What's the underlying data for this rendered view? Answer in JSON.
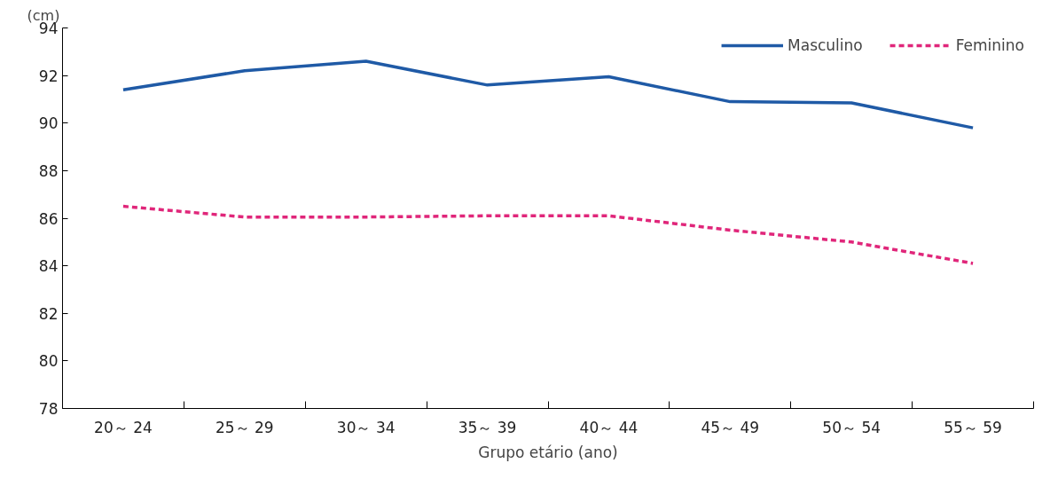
{
  "chart_data": {
    "type": "line",
    "ylabel": "(cm)",
    "xlabel": "Grupo etário (ano)",
    "categories": [
      "20～ 24",
      "25～ 29",
      "30～ 34",
      "35～ 39",
      "40～ 44",
      "45～ 49",
      "50～ 54",
      "55～ 59"
    ],
    "series": [
      {
        "name": "Masculino",
        "color": "#1f5aa6",
        "line_style": "solid",
        "values": [
          91.4,
          92.2,
          92.6,
          91.6,
          91.95,
          90.9,
          90.85,
          89.8
        ]
      },
      {
        "name": "Feminino",
        "color": "#e0267a",
        "line_style": "dashed",
        "values": [
          86.5,
          86.05,
          86.05,
          86.1,
          86.1,
          85.5,
          85.0,
          84.1
        ]
      }
    ],
    "ylim": [
      78,
      94
    ],
    "yticks": [
      78,
      80,
      82,
      84,
      86,
      88,
      90,
      92,
      94
    ],
    "grid": false,
    "legend": "top right",
    "marker": "none"
  }
}
